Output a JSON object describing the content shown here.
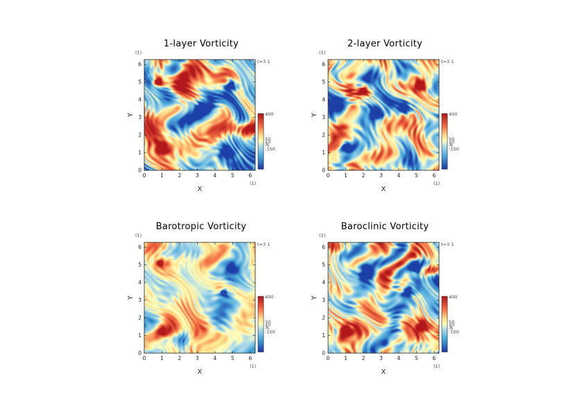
{
  "chart_data": [
    {
      "type": "heatmap",
      "title": "1-layer Vorticity",
      "xlabel": "X",
      "ylabel": "Y",
      "xlim": [
        0,
        6.28
      ],
      "ylim": [
        0,
        6.28
      ],
      "xticks": [
        "0",
        "1",
        "2",
        "3",
        "4",
        "5",
        "6"
      ],
      "yticks": [
        "0",
        "1",
        "2",
        "3",
        "4",
        "5",
        "6"
      ],
      "x_unit": "(1)",
      "y_unit": "(1)",
      "time_label": "t=3 1",
      "colorbar_ticks": [
        "400",
        "50",
        "10",
        "1",
        "-5",
        "-100"
      ],
      "vortices": [
        {
          "x": 1.0,
          "y": 1.2,
          "sign": 1
        },
        {
          "x": 4.9,
          "y": 4.8,
          "sign": -1
        },
        {
          "x": 0.8,
          "y": 5.0,
          "sign": 1
        },
        {
          "x": 3.2,
          "y": 3.5,
          "sign": -1
        },
        {
          "x": 4.6,
          "y": 1.0,
          "sign": -1
        }
      ]
    },
    {
      "type": "heatmap",
      "title": "2-layer Vorticity",
      "xlabel": "X",
      "ylabel": "Y",
      "xlim": [
        0,
        6.28
      ],
      "ylim": [
        0,
        6.28
      ],
      "xticks": [
        "0",
        "1",
        "2",
        "3",
        "4",
        "5",
        "6"
      ],
      "yticks": [
        "0",
        "1",
        "2",
        "3",
        "4",
        "5",
        "6"
      ],
      "x_unit": "(1)",
      "y_unit": "(1)",
      "time_label": "t=3 1",
      "colorbar_ticks": [
        "400",
        "50",
        "10",
        "1",
        "-5",
        "-100"
      ],
      "vortices": [
        {
          "x": 1.0,
          "y": 1.3,
          "sign": -1
        },
        {
          "x": 4.3,
          "y": 3.5,
          "sign": -1
        },
        {
          "x": 5.2,
          "y": 4.8,
          "sign": 1
        },
        {
          "x": 2.0,
          "y": 4.5,
          "sign": 1
        },
        {
          "x": 2.7,
          "y": 3.2,
          "sign": -1
        }
      ]
    },
    {
      "type": "heatmap",
      "title": "Barotropic Vorticity",
      "xlabel": "X",
      "ylabel": "Y",
      "xlim": [
        0,
        6.28
      ],
      "ylim": [
        0,
        6.28
      ],
      "xticks": [
        "0",
        "1",
        "2",
        "3",
        "4",
        "5",
        "6"
      ],
      "yticks": [
        "0",
        "1",
        "2",
        "3",
        "4",
        "5",
        "6"
      ],
      "x_unit": "(1)",
      "y_unit": "(1)",
      "time_label": "t=3 1",
      "colorbar_ticks": [
        "400",
        "50",
        "10",
        "1",
        "-5",
        "-100"
      ],
      "vortices": [
        {
          "x": 1.0,
          "y": 1.2,
          "sign": 1
        },
        {
          "x": 4.9,
          "y": 4.8,
          "sign": -1
        },
        {
          "x": 4.5,
          "y": 3.4,
          "sign": -1
        },
        {
          "x": 0.9,
          "y": 5.1,
          "sign": 1
        }
      ]
    },
    {
      "type": "heatmap",
      "title": "Baroclinic Vorticity",
      "xlabel": "X",
      "ylabel": "Y",
      "xlim": [
        0,
        6.28
      ],
      "ylim": [
        0,
        6.28
      ],
      "xticks": [
        "0",
        "1",
        "2",
        "3",
        "4",
        "5",
        "6"
      ],
      "yticks": [
        "0",
        "1",
        "2",
        "3",
        "4",
        "5",
        "6"
      ],
      "x_unit": "(1)",
      "y_unit": "(1)",
      "time_label": "t=3 1",
      "colorbar_ticks": [
        "400",
        "50",
        "10",
        "1",
        "-5",
        "-100"
      ],
      "vortices": [
        {
          "x": 1.0,
          "y": 1.3,
          "sign": 1
        },
        {
          "x": 4.9,
          "y": 4.8,
          "sign": -1
        },
        {
          "x": 2.2,
          "y": 4.5,
          "sign": -1
        },
        {
          "x": 4.5,
          "y": 3.5,
          "sign": -1
        },
        {
          "x": 5.3,
          "y": 1.5,
          "sign": 1
        }
      ]
    }
  ],
  "colors": {
    "strong_positive": "#b2181b",
    "positive": "#f46d43",
    "weak_positive": "#fee08b",
    "near_zero": "#ffffbf",
    "weak_negative": "#abd9e9",
    "negative": "#4aa8dc",
    "strong_negative": "#1c3fa8"
  }
}
